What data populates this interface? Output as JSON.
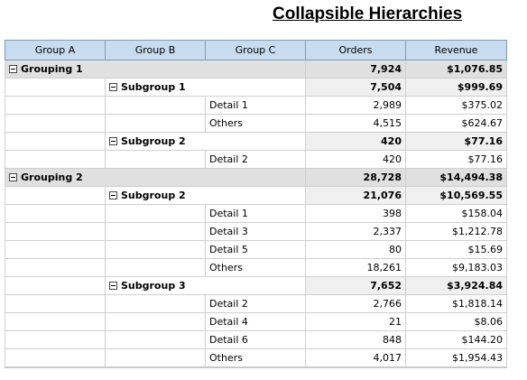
{
  "title": "Collapsible Hierarchies",
  "columns": [
    "Group A",
    "Group B",
    "Group C",
    "Orders",
    "Revenue"
  ],
  "rows": {
    "g1": {
      "label": "Grouping 1",
      "orders": "7,924",
      "revenue": "$1,076.85"
    },
    "g1s1": {
      "label": "Subgroup 1",
      "orders": "7,504",
      "revenue": "$999.69"
    },
    "g1s1d1": {
      "label": "Detail 1",
      "orders": "2,989",
      "revenue": "$375.02"
    },
    "g1s1d2": {
      "label": "Others",
      "orders": "4,515",
      "revenue": "$624.67"
    },
    "g1s2": {
      "label": "Subgroup 2",
      "orders": "420",
      "revenue": "$77.16"
    },
    "g1s2d1": {
      "label": "Detail 2",
      "orders": "420",
      "revenue": "$77.16"
    },
    "g2": {
      "label": "Grouping 2",
      "orders": "28,728",
      "revenue": "$14,494.38"
    },
    "g2s1": {
      "label": "Subgroup 2",
      "orders": "21,076",
      "revenue": "$10,569.55"
    },
    "g2s1d1": {
      "label": "Detail 1",
      "orders": "398",
      "revenue": "$158.04"
    },
    "g2s1d2": {
      "label": "Detail 3",
      "orders": "2,337",
      "revenue": "$1,212.78"
    },
    "g2s1d3": {
      "label": "Detail 5",
      "orders": "80",
      "revenue": "$15.69"
    },
    "g2s1d4": {
      "label": "Others",
      "orders": "18,261",
      "revenue": "$9,183.03"
    },
    "g2s2": {
      "label": "Subgroup 3",
      "orders": "7,652",
      "revenue": "$3,924.84"
    },
    "g2s2d1": {
      "label": "Detail 2",
      "orders": "2,766",
      "revenue": "$1,818.14"
    },
    "g2s2d2": {
      "label": "Detail 4",
      "orders": "21",
      "revenue": "$8.06"
    },
    "g2s2d3": {
      "label": "Detail 6",
      "orders": "848",
      "revenue": "$144.20"
    },
    "g2s2d4": {
      "label": "Others",
      "orders": "4,017",
      "revenue": "$1,954.43"
    }
  },
  "colors": {
    "header_bg": "#c7dcef",
    "group_bg": "#e0e0e0",
    "subgroup_value_bg": "#f0f0f0"
  },
  "icons": {
    "toggle": "collapse-minus-icon"
  }
}
